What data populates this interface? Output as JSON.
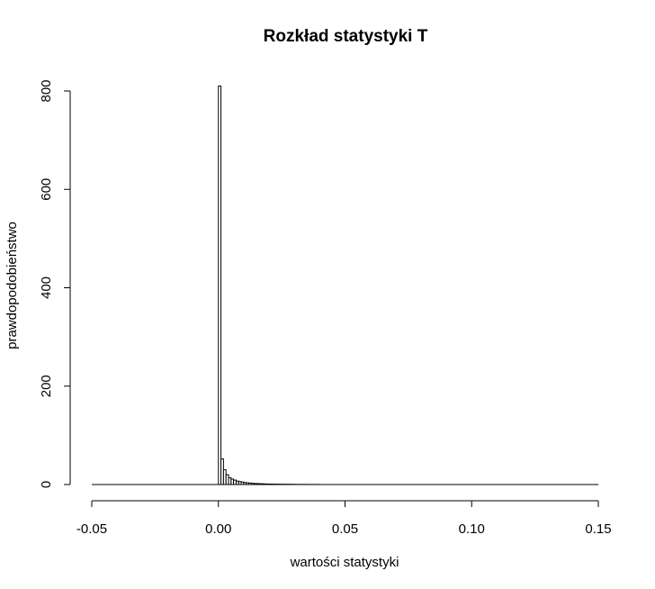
{
  "chart_data": {
    "type": "bar",
    "title": "Rozkład statystyki T",
    "xlabel": "wartości statystyki",
    "ylabel": "prawdopodobieństwo",
    "xlim": [
      -0.05,
      0.15
    ],
    "ylim": [
      0,
      800
    ],
    "x_ticks": [
      -0.05,
      0.0,
      0.05,
      0.1,
      0.15
    ],
    "x_tick_labels": [
      "-0.05",
      "0.00",
      "0.05",
      "0.10",
      "0.15"
    ],
    "y_ticks": [
      0,
      200,
      400,
      600,
      800
    ],
    "y_tick_labels": [
      "0",
      "200",
      "400",
      "600",
      "800"
    ],
    "grid": false,
    "bin_width": 0.001,
    "bins": [
      {
        "x0": 0.0,
        "x1": 0.001,
        "value": 810
      },
      {
        "x0": 0.001,
        "x1": 0.002,
        "value": 52
      },
      {
        "x0": 0.002,
        "x1": 0.003,
        "value": 30
      },
      {
        "x0": 0.003,
        "x1": 0.004,
        "value": 20
      },
      {
        "x0": 0.004,
        "x1": 0.005,
        "value": 14
      },
      {
        "x0": 0.005,
        "x1": 0.006,
        "value": 11
      },
      {
        "x0": 0.006,
        "x1": 0.007,
        "value": 9
      },
      {
        "x0": 0.007,
        "x1": 0.008,
        "value": 7
      },
      {
        "x0": 0.008,
        "x1": 0.009,
        "value": 6
      },
      {
        "x0": 0.009,
        "x1": 0.01,
        "value": 5
      },
      {
        "x0": 0.01,
        "x1": 0.011,
        "value": 4
      },
      {
        "x0": 0.011,
        "x1": 0.012,
        "value": 3.5
      },
      {
        "x0": 0.012,
        "x1": 0.013,
        "value": 3
      },
      {
        "x0": 0.013,
        "x1": 0.014,
        "value": 2.5
      },
      {
        "x0": 0.014,
        "x1": 0.015,
        "value": 2
      },
      {
        "x0": 0.015,
        "x1": 0.016,
        "value": 2
      },
      {
        "x0": 0.016,
        "x1": 0.017,
        "value": 1.5
      },
      {
        "x0": 0.017,
        "x1": 0.018,
        "value": 1.5
      },
      {
        "x0": 0.018,
        "x1": 0.019,
        "value": 1.2
      },
      {
        "x0": 0.019,
        "x1": 0.02,
        "value": 1
      },
      {
        "x0": 0.02,
        "x1": 0.021,
        "value": 1
      },
      {
        "x0": 0.021,
        "x1": 0.022,
        "value": 0.8
      },
      {
        "x0": 0.022,
        "x1": 0.023,
        "value": 0.8
      },
      {
        "x0": 0.023,
        "x1": 0.024,
        "value": 0.7
      },
      {
        "x0": 0.024,
        "x1": 0.025,
        "value": 0.6
      },
      {
        "x0": 0.025,
        "x1": 0.026,
        "value": 0.6
      },
      {
        "x0": 0.026,
        "x1": 0.027,
        "value": 0.5
      },
      {
        "x0": 0.027,
        "x1": 0.028,
        "value": 0.5
      },
      {
        "x0": 0.028,
        "x1": 0.029,
        "value": 0.4
      },
      {
        "x0": 0.029,
        "x1": 0.03,
        "value": 0.4
      },
      {
        "x0": 0.03,
        "x1": 0.032,
        "value": 0.3
      },
      {
        "x0": 0.032,
        "x1": 0.035,
        "value": 0.25
      },
      {
        "x0": 0.035,
        "x1": 0.04,
        "value": 0.2
      }
    ],
    "baseline_range": [
      -0.05,
      0.15
    ]
  }
}
